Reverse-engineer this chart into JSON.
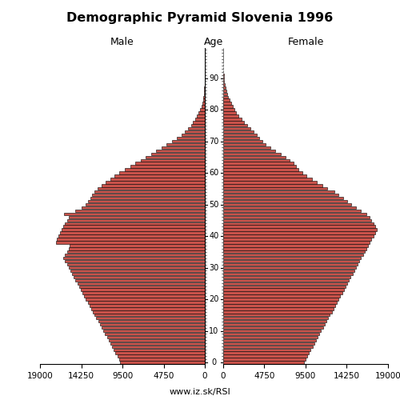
{
  "title": "Demographic Pyramid Slovenia 1996",
  "male_label": "Male",
  "female_label": "Female",
  "age_label": "Age",
  "footer": "www.iz.sk/RSI",
  "xlim": 19000,
  "bar_color": "#C8524A",
  "bar_edge_color": "#000000",
  "bar_linewidth": 0.4,
  "ages": [
    0,
    1,
    2,
    3,
    4,
    5,
    6,
    7,
    8,
    9,
    10,
    11,
    12,
    13,
    14,
    15,
    16,
    17,
    18,
    19,
    20,
    21,
    22,
    23,
    24,
    25,
    26,
    27,
    28,
    29,
    30,
    31,
    32,
    33,
    34,
    35,
    36,
    37,
    38,
    39,
    40,
    41,
    42,
    43,
    44,
    45,
    46,
    47,
    48,
    49,
    50,
    51,
    52,
    53,
    54,
    55,
    56,
    57,
    58,
    59,
    60,
    61,
    62,
    63,
    64,
    65,
    66,
    67,
    68,
    69,
    70,
    71,
    72,
    73,
    74,
    75,
    76,
    77,
    78,
    79,
    80,
    81,
    82,
    83,
    84,
    85,
    86,
    87,
    88,
    89,
    90,
    91,
    92,
    93,
    94,
    95,
    96,
    97,
    98,
    99
  ],
  "male": [
    9800,
    9900,
    10100,
    10300,
    10500,
    10700,
    10900,
    11100,
    11300,
    11500,
    11700,
    11900,
    12100,
    12300,
    12500,
    12700,
    12900,
    13100,
    13300,
    13500,
    13700,
    13900,
    14100,
    14300,
    14500,
    14700,
    14900,
    15100,
    15300,
    15500,
    15700,
    15900,
    16100,
    16300,
    16100,
    15900,
    15700,
    15600,
    17200,
    17100,
    16900,
    16700,
    16500,
    16300,
    16100,
    15900,
    15700,
    16200,
    14900,
    14200,
    13700,
    13500,
    13200,
    13000,
    12700,
    12400,
    11900,
    11400,
    10900,
    10400,
    9900,
    9200,
    8600,
    8000,
    7400,
    6800,
    6200,
    5600,
    5000,
    4400,
    3800,
    3200,
    2700,
    2300,
    1900,
    1600,
    1350,
    1100,
    900,
    700,
    540,
    400,
    300,
    220,
    160,
    115,
    82,
    57,
    38,
    25,
    16,
    11,
    7,
    4,
    3,
    2,
    1,
    1,
    1,
    0
  ],
  "female": [
    9300,
    9500,
    9700,
    9900,
    10100,
    10300,
    10500,
    10700,
    10900,
    11100,
    11300,
    11500,
    11700,
    11900,
    12100,
    12300,
    12500,
    12700,
    12900,
    13100,
    13300,
    13500,
    13700,
    13900,
    14100,
    14300,
    14500,
    14700,
    14900,
    15100,
    15300,
    15500,
    15700,
    15900,
    16100,
    16300,
    16500,
    16700,
    16900,
    17100,
    17300,
    17500,
    17700,
    17500,
    17300,
    17100,
    16900,
    16500,
    15900,
    15300,
    14800,
    14300,
    13800,
    13300,
    12800,
    12000,
    11400,
    10800,
    10200,
    9600,
    9100,
    8700,
    8400,
    8100,
    7700,
    7200,
    6600,
    6000,
    5400,
    4900,
    4500,
    4200,
    3900,
    3500,
    3100,
    2800,
    2400,
    2100,
    1800,
    1500,
    1300,
    1100,
    930,
    750,
    600,
    450,
    340,
    250,
    180,
    130,
    90,
    62,
    42,
    27,
    17,
    11,
    7,
    4,
    2,
    1
  ]
}
